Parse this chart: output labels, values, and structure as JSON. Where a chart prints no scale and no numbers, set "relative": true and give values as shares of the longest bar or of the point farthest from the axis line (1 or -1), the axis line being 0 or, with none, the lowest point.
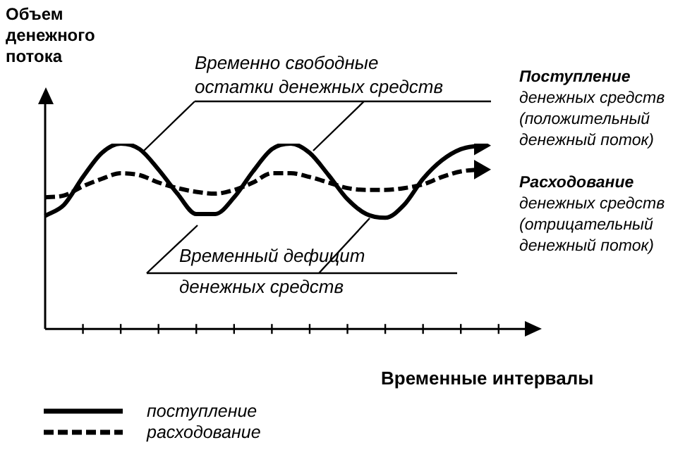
{
  "chart_data": {
    "type": "line",
    "relative": true,
    "ylabel": "Объем денежного потока",
    "xlabel": "Временные интервалы",
    "categories": [
      null,
      null,
      null,
      null,
      null,
      null,
      null,
      null,
      null,
      null,
      null,
      null,
      null,
      null,
      null,
      null,
      null,
      null,
      null,
      null,
      null,
      null,
      null,
      null
    ],
    "series": [
      {
        "name": "поступление",
        "color": "#000000",
        "line_style": "solid",
        "values": [
          0.61,
          0.67,
          0.82,
          0.95,
          1,
          0.97,
          0.86,
          0.73,
          0.62,
          0.62,
          0.71,
          0.85,
          0.97,
          1,
          0.95,
          0.83,
          0.7,
          0.62,
          0.6,
          0.67,
          0.81,
          0.91,
          0.97,
          0.99
        ]
      },
      {
        "name": "расходование",
        "color": "#000000",
        "line_style": "dashed",
        "values": [
          0.71,
          0.72,
          0.77,
          0.81,
          0.84,
          0.83,
          0.79,
          0.76,
          0.74,
          0.73,
          0.75,
          0.79,
          0.84,
          0.84,
          0.82,
          0.79,
          0.76,
          0.75,
          0.75,
          0.76,
          0.78,
          0.82,
          0.85,
          0.86
        ]
      }
    ],
    "annotations": [
      "Временно свободные остатки денежных средств",
      "Временный дефицит денежных средств",
      "Поступление денежных средств (положительный денежный поток)",
      "Расходование денежных средств (отрицательный денежный поток)"
    ],
    "marker": "none",
    "grid": false,
    "legend": "bottom left"
  }
}
